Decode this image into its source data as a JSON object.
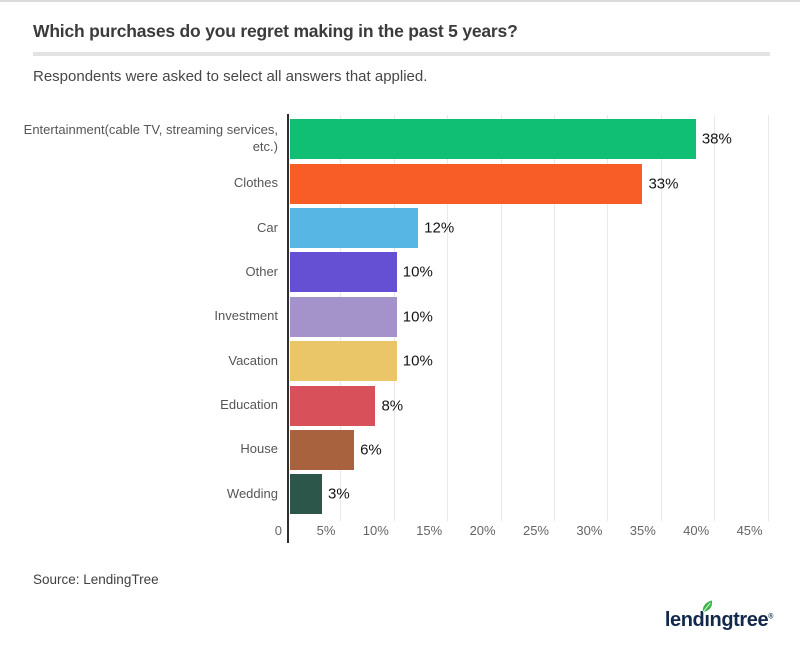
{
  "chart_data": {
    "type": "bar",
    "orientation": "horizontal",
    "title": "Which purchases do you regret making in the past 5 years?",
    "subtitle": "Respondents were asked to select all answers that applied.",
    "xlabel": "",
    "ylabel": "",
    "xlim": [
      0,
      47.5
    ],
    "grid": true,
    "legend": false,
    "categories": [
      "Entertainment(cable TV, streaming services, etc.)",
      "Clothes",
      "Car",
      "Other",
      "Investment",
      "Vacation",
      "Education",
      "House",
      "Wedding"
    ],
    "values": [
      38,
      33,
      12,
      10,
      10,
      10,
      8,
      6,
      3
    ],
    "value_labels": [
      "38%",
      "33%",
      "12%",
      "10%",
      "10%",
      "10%",
      "8%",
      "6%",
      "3%"
    ],
    "bar_colors": [
      "#10be74",
      "#f95d27",
      "#57b6e4",
      "#6550d4",
      "#a492cb",
      "#ebc668",
      "#d8515a",
      "#a9623e",
      "#2d564b"
    ],
    "x_ticks": [
      "0",
      "5%",
      "10%",
      "15%",
      "20%",
      "25%",
      "30%",
      "35%",
      "40%",
      "45%"
    ],
    "axis_color": "#2e2e2e",
    "gridline_color": "#e9e9e9"
  },
  "footer": {
    "source": "Source: LendingTree",
    "logo": {
      "pre": "lend",
      "i_char": "ı",
      "post": "ngtree",
      "reg": "®",
      "text_color": "#12294c",
      "leaf_color": "#3bb54a"
    }
  }
}
